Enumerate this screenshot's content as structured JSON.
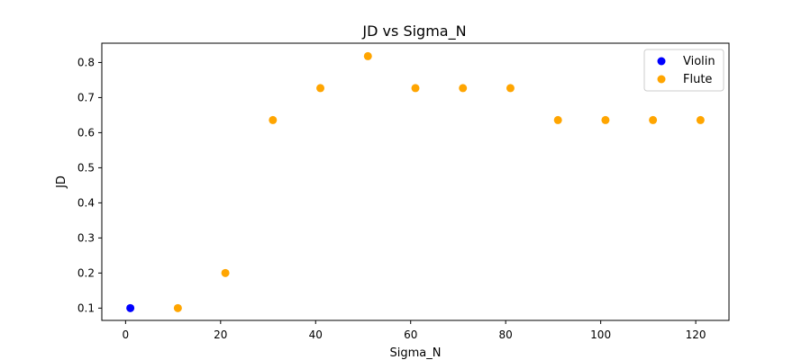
{
  "chart_data": {
    "type": "scatter",
    "title": "JD vs Sigma_N",
    "xlabel": "Sigma_N",
    "ylabel": "JD",
    "xlim": [
      -5,
      127
    ],
    "ylim": [
      0.065,
      0.855
    ],
    "xticks": [
      0,
      20,
      40,
      60,
      80,
      100,
      120
    ],
    "yticks": [
      0.1,
      0.2,
      0.3,
      0.4,
      0.5,
      0.6,
      0.7,
      0.8
    ],
    "grid": false,
    "legend_position": "top-right",
    "series": [
      {
        "name": "Violin",
        "color": "#0000ff",
        "points": [
          {
            "x": 1,
            "y": 0.1
          }
        ]
      },
      {
        "name": "Flute",
        "color": "#ffa500",
        "points": [
          {
            "x": 11,
            "y": 0.1
          },
          {
            "x": 21,
            "y": 0.2
          },
          {
            "x": 31,
            "y": 0.636
          },
          {
            "x": 41,
            "y": 0.727
          },
          {
            "x": 51,
            "y": 0.818
          },
          {
            "x": 61,
            "y": 0.727
          },
          {
            "x": 71,
            "y": 0.727
          },
          {
            "x": 81,
            "y": 0.727
          },
          {
            "x": 91,
            "y": 0.636
          },
          {
            "x": 101,
            "y": 0.636
          },
          {
            "x": 111,
            "y": 0.636
          },
          {
            "x": 121,
            "y": 0.636
          }
        ]
      }
    ]
  }
}
